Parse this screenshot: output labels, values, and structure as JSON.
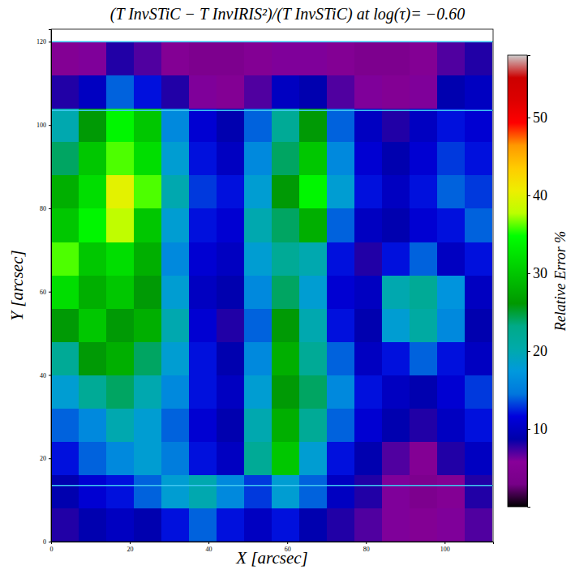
{
  "chart_data": {
    "type": "heatmap",
    "title": "(T InvSTiC − T InvIRIS²)/(T InvSTiC) at log(τ)= −0.60",
    "x_label": "X [arcsec]",
    "y_label": "Y [arcsec]",
    "xlim": [
      0,
      112.3
    ],
    "ylim": [
      0,
      123
    ],
    "xticks": [
      0,
      20,
      40,
      60,
      80,
      100
    ],
    "yticks": [
      0,
      20,
      40,
      60,
      80,
      100,
      120
    ],
    "x_edges": [
      0,
      7,
      14,
      21,
      28,
      35,
      42,
      49,
      56,
      63,
      70,
      77,
      84,
      91,
      98,
      105,
      112
    ],
    "y_edges": [
      0,
      8,
      16,
      24,
      32,
      40,
      48,
      56,
      64,
      72,
      80,
      88,
      96,
      104,
      112,
      120
    ],
    "z": [
      [
        8,
        9,
        10,
        9,
        12,
        14,
        12,
        10,
        12,
        9,
        8,
        7,
        6,
        5,
        6,
        7
      ],
      [
        9,
        11,
        12,
        14,
        18,
        20,
        16,
        13,
        18,
        14,
        10,
        8,
        6,
        4,
        5,
        8
      ],
      [
        12,
        14,
        16,
        18,
        15,
        12,
        10,
        22,
        30,
        18,
        12,
        9,
        7,
        5,
        8,
        10
      ],
      [
        14,
        16,
        20,
        18,
        14,
        11,
        9,
        20,
        28,
        22,
        14,
        11,
        9,
        8,
        10,
        12
      ],
      [
        18,
        22,
        24,
        20,
        16,
        12,
        10,
        18,
        26,
        24,
        16,
        12,
        10,
        9,
        11,
        13
      ],
      [
        22,
        26,
        28,
        24,
        18,
        12,
        9,
        16,
        28,
        22,
        14,
        10,
        12,
        14,
        12,
        10
      ],
      [
        26,
        30,
        26,
        28,
        20,
        11,
        8,
        14,
        26,
        20,
        12,
        9,
        18,
        21,
        16,
        9
      ],
      [
        32,
        28,
        30,
        26,
        18,
        10,
        9,
        16,
        24,
        18,
        11,
        10,
        20,
        22,
        17,
        10
      ],
      [
        36,
        30,
        32,
        28,
        16,
        11,
        10,
        18,
        22,
        20,
        12,
        8,
        12,
        14,
        10,
        12
      ],
      [
        30,
        34,
        38,
        30,
        18,
        12,
        11,
        20,
        24,
        28,
        14,
        10,
        9,
        11,
        12,
        14
      ],
      [
        28,
        32,
        40,
        36,
        20,
        13,
        12,
        18,
        26,
        34,
        18,
        12,
        10,
        12,
        14,
        13
      ],
      [
        24,
        30,
        36,
        32,
        18,
        12,
        10,
        16,
        24,
        30,
        16,
        11,
        9,
        11,
        13,
        12
      ],
      [
        20,
        26,
        34,
        30,
        16,
        11,
        9,
        14,
        22,
        26,
        14,
        10,
        8,
        10,
        12,
        11
      ],
      [
        8,
        10,
        14,
        12,
        8,
        6,
        5,
        7,
        10,
        9,
        7,
        6,
        5,
        6,
        9,
        10
      ],
      [
        5,
        6,
        8,
        7,
        5,
        4,
        4,
        5,
        6,
        6,
        5,
        4,
        4,
        5,
        7,
        8
      ]
    ],
    "colorbar": {
      "label": "Relative Error %",
      "range": [
        0,
        58
      ],
      "ticks": [
        10,
        20,
        30,
        40,
        50
      ]
    },
    "hlines": {
      "values": [
        120,
        103.5,
        13.5
      ],
      "color": "#3fc6f0"
    }
  }
}
